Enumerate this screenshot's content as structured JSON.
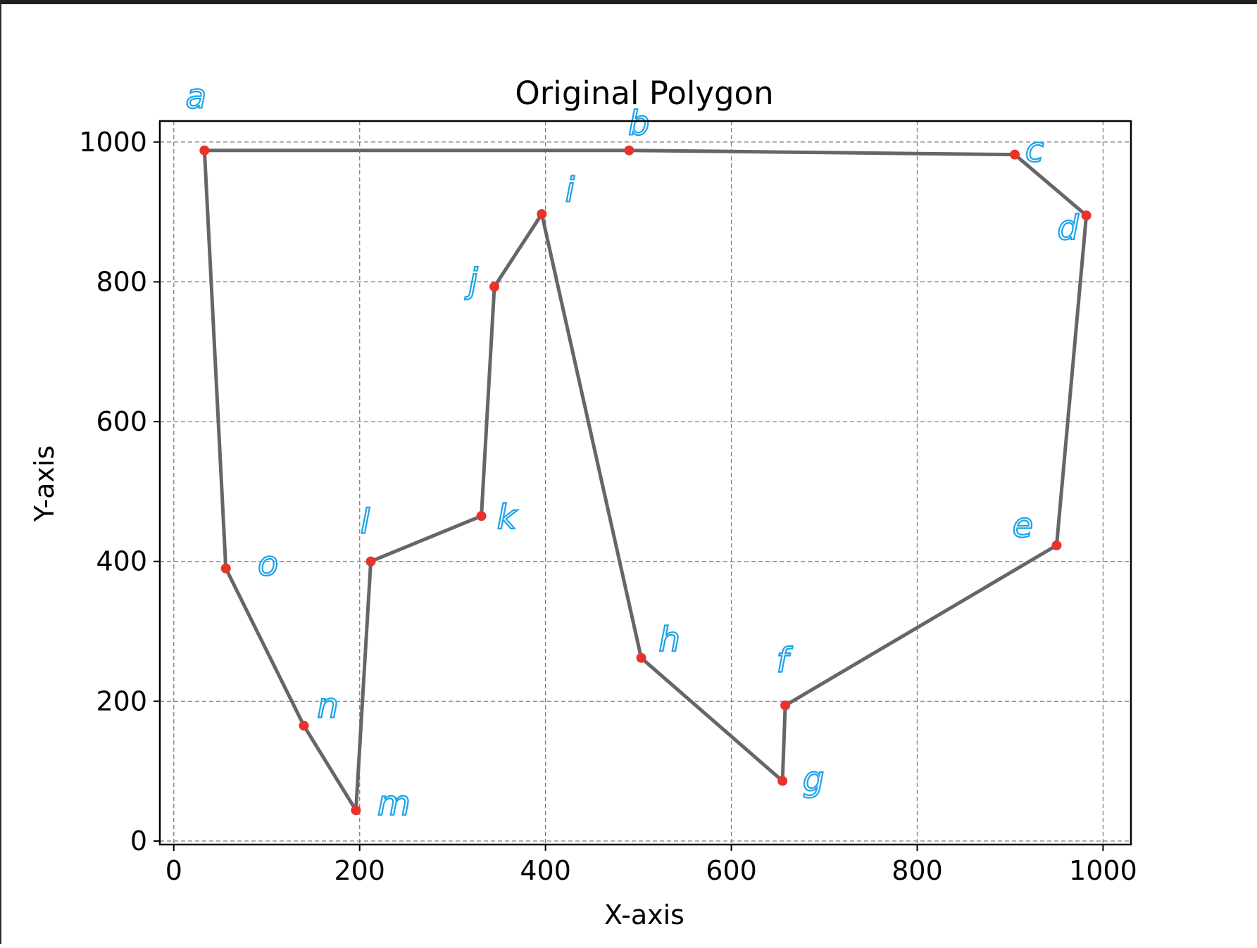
{
  "chart_data": {
    "type": "line",
    "title": "Original Polygon",
    "xlabel": "X-axis",
    "ylabel": "Y-axis",
    "xlim": [
      -15,
      1030
    ],
    "ylim": [
      -5,
      1030
    ],
    "xticks": [
      0,
      200,
      400,
      600,
      800,
      1000
    ],
    "yticks": [
      0,
      200,
      400,
      600,
      800,
      1000
    ],
    "grid": true,
    "closed": true,
    "points": [
      {
        "label": "a",
        "x": 33,
        "y": 988
      },
      {
        "label": "b",
        "x": 490,
        "y": 988
      },
      {
        "label": "c",
        "x": 905,
        "y": 982
      },
      {
        "label": "d",
        "x": 982,
        "y": 895
      },
      {
        "label": "e",
        "x": 950,
        "y": 423
      },
      {
        "label": "f",
        "x": 658,
        "y": 194
      },
      {
        "label": "g",
        "x": 655,
        "y": 86
      },
      {
        "label": "h",
        "x": 503,
        "y": 262
      },
      {
        "label": "i",
        "x": 396,
        "y": 897
      },
      {
        "label": "j",
        "x": 345,
        "y": 793
      },
      {
        "label": "k",
        "x": 331,
        "y": 465
      },
      {
        "label": "l",
        "x": 212,
        "y": 400
      },
      {
        "label": "m",
        "x": 196,
        "y": 44
      },
      {
        "label": "n",
        "x": 140,
        "y": 165
      },
      {
        "label": "o",
        "x": 56,
        "y": 390
      }
    ]
  },
  "colors": {
    "line": "#666666",
    "marker": "#e8332a",
    "grid": "#7f7f7f",
    "annotation": "#1aa3e8"
  }
}
